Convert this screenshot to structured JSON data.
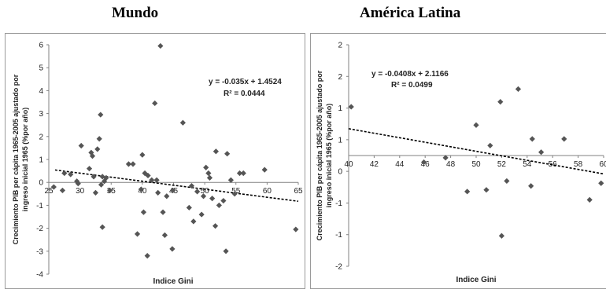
{
  "chart_data": [
    {
      "type": "scatter",
      "title": "Mundo",
      "xlabel": "Indice Gini",
      "ylabel_lines": [
        "Crecimiento PIB per cápita 1965-2005 ajustado por",
        "ingreso inicial 1965 (%por año)"
      ],
      "xlim": [
        25,
        65
      ],
      "ylim": [
        -4,
        6
      ],
      "xticks": [
        "25",
        "30",
        "35",
        "40",
        "45",
        "50",
        "55",
        "60",
        "65"
      ],
      "yticks": [
        "-4",
        "-3",
        "-2",
        "-1",
        "0",
        "1",
        "2",
        "3",
        "4",
        "5",
        "6"
      ],
      "equation": "y = -0.035x + 1.4524",
      "r2": "R² = 0.0444",
      "trend": {
        "slope": -0.035,
        "intercept": 1.4524
      },
      "points": [
        [
          25.8,
          -0.2
        ],
        [
          27.2,
          -0.35
        ],
        [
          27.5,
          0.4
        ],
        [
          28.5,
          0.35
        ],
        [
          29.5,
          0.05
        ],
        [
          29.7,
          -0.05
        ],
        [
          30.2,
          1.6
        ],
        [
          31.5,
          0.6
        ],
        [
          31.8,
          1.3
        ],
        [
          32.0,
          1.15
        ],
        [
          32.2,
          0.25
        ],
        [
          32.5,
          -0.45
        ],
        [
          32.8,
          1.45
        ],
        [
          33.1,
          1.9
        ],
        [
          33.3,
          2.95
        ],
        [
          33.4,
          -0.1
        ],
        [
          33.6,
          0.25
        ],
        [
          33.6,
          -1.95
        ],
        [
          33.9,
          0.05
        ],
        [
          34.2,
          0.2
        ],
        [
          34.8,
          -0.35
        ],
        [
          37.8,
          0.8
        ],
        [
          38.5,
          0.8
        ],
        [
          39.2,
          -2.25
        ],
        [
          39.8,
          -0.3
        ],
        [
          40.0,
          1.2
        ],
        [
          40.2,
          -1.3
        ],
        [
          40.4,
          0.4
        ],
        [
          40.8,
          -3.2
        ],
        [
          40.9,
          0.3
        ],
        [
          41.5,
          0.1
        ],
        [
          42.0,
          3.45
        ],
        [
          42.3,
          0.1
        ],
        [
          42.5,
          -0.45
        ],
        [
          42.9,
          5.95
        ],
        [
          43.3,
          -1.3
        ],
        [
          43.6,
          -2.3
        ],
        [
          43.9,
          -0.6
        ],
        [
          44.8,
          -2.9
        ],
        [
          44.9,
          -0.35
        ],
        [
          46.5,
          2.6
        ],
        [
          47.5,
          -1.1
        ],
        [
          47.9,
          -0.15
        ],
        [
          48.2,
          -1.7
        ],
        [
          48.8,
          -0.4
        ],
        [
          49.5,
          -1.4
        ],
        [
          49.8,
          -0.6
        ],
        [
          50.2,
          0.65
        ],
        [
          50.6,
          0.4
        ],
        [
          50.8,
          0.2
        ],
        [
          51.2,
          -0.7
        ],
        [
          51.8,
          1.35
        ],
        [
          51.7,
          -1.9
        ],
        [
          52.3,
          -1.0
        ],
        [
          53.0,
          -0.8
        ],
        [
          53.6,
          1.25
        ],
        [
          53.4,
          -3.0
        ],
        [
          54.2,
          0.1
        ],
        [
          54.8,
          -0.5
        ],
        [
          55.6,
          0.4
        ],
        [
          56.2,
          0.4
        ],
        [
          59.6,
          0.55
        ],
        [
          64.6,
          -2.05
        ]
      ]
    },
    {
      "type": "scatter",
      "title": "América Latina",
      "xlabel": "Indice Gini",
      "ylabel_lines": [
        "Crecimiento PIB per cápita 1965-2005 ajustado por",
        "ingreso inicial 1965 (%por año)"
      ],
      "xlim": [
        40,
        60
      ],
      "ylim": [
        -2,
        2
      ],
      "xticks": [
        "40",
        "42",
        "44",
        "46",
        "48",
        "50",
        "52",
        "54",
        "56",
        "58",
        "60"
      ],
      "yticks": [
        "-2",
        "-1",
        "-1",
        "0",
        "1",
        "1",
        "2",
        "2"
      ],
      "equation": "y = -0.0408x + 2.1166",
      "r2": "R² = 0.0499",
      "trend": {
        "slope": -0.0408,
        "intercept": 2.1166
      },
      "points": [
        [
          40.2,
          0.88
        ],
        [
          45.9,
          -0.12
        ],
        [
          47.6,
          -0.04
        ],
        [
          49.3,
          -0.65
        ],
        [
          50.0,
          0.55
        ],
        [
          50.8,
          -0.62
        ],
        [
          51.1,
          0.18
        ],
        [
          51.9,
          0.97
        ],
        [
          52.0,
          -1.45
        ],
        [
          52.4,
          -0.46
        ],
        [
          53.3,
          1.2
        ],
        [
          54.3,
          -0.55
        ],
        [
          54.4,
          0.3
        ],
        [
          55.1,
          0.06
        ],
        [
          56.9,
          0.3
        ],
        [
          58.9,
          -0.8
        ],
        [
          59.8,
          -0.5
        ]
      ]
    }
  ]
}
